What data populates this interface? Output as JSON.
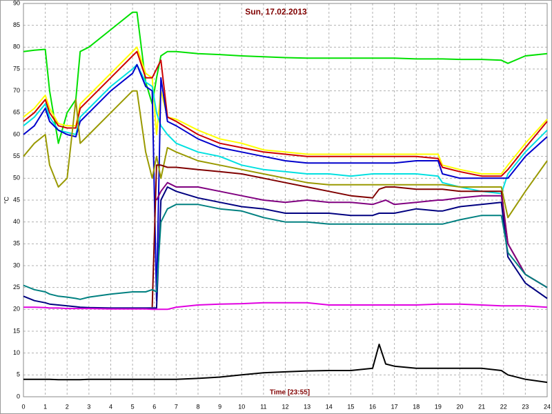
{
  "chart_data": {
    "type": "line",
    "title": "Sun, 17.02.2013",
    "xlabel": "Time [23:55]",
    "ylabel": "°C",
    "x": [
      0,
      0.5,
      1,
      1.2,
      1.6,
      2,
      2.4,
      2.6,
      3,
      4,
      5,
      5.2,
      5.6,
      5.9,
      6.1,
      6.3,
      6.6,
      7,
      8,
      9,
      10,
      11,
      12,
      13,
      14,
      15,
      16,
      16.3,
      16.6,
      17,
      18,
      19,
      19.2,
      20,
      21,
      21.9,
      22.2,
      23,
      24
    ],
    "xlim": [
      0,
      24
    ],
    "xticks": [
      0,
      1,
      2,
      3,
      4,
      5,
      6,
      7,
      8,
      9,
      10,
      11,
      12,
      13,
      14,
      15,
      16,
      17,
      18,
      19,
      20,
      21,
      22,
      23,
      24
    ],
    "ylim": [
      0,
      90
    ],
    "yticks": [
      0,
      5,
      10,
      15,
      20,
      25,
      30,
      35,
      40,
      45,
      50,
      55,
      60,
      65,
      70,
      75,
      80,
      85,
      90
    ],
    "grid": true,
    "series": [
      {
        "color": "#00e000",
        "values": [
          79,
          79.3,
          79.5,
          70,
          58,
          65,
          68,
          79,
          80,
          84,
          88,
          88,
          72,
          67,
          73,
          78,
          79,
          79,
          78.5,
          78.3,
          78,
          77.8,
          77.6,
          77.5,
          77.5,
          77.5,
          77.5,
          77.5,
          77.5,
          77.5,
          77.3,
          77.3,
          77.3,
          77.2,
          77.2,
          77,
          76.3,
          78,
          78.5
        ]
      },
      {
        "color": "#ffff00",
        "values": [
          64,
          66,
          69,
          66,
          62.5,
          62,
          62,
          67,
          69,
          74,
          79,
          80,
          74,
          73,
          60,
          70,
          64,
          63.5,
          61,
          59,
          58,
          56.5,
          56,
          55.5,
          55.5,
          55.5,
          55.5,
          55.5,
          55.5,
          55.5,
          55.5,
          55.5,
          53,
          52,
          51,
          51,
          53,
          58,
          63.5
        ]
      },
      {
        "color": "#cc0000",
        "values": [
          63,
          65,
          68,
          65,
          62,
          61.5,
          61.5,
          66,
          68,
          73,
          78,
          79,
          73,
          73,
          75,
          77,
          64,
          63,
          60,
          58,
          57,
          56,
          55.5,
          55,
          55,
          55,
          55,
          55,
          55,
          55,
          55,
          54.5,
          52.5,
          51.5,
          50.5,
          50.5,
          52,
          57,
          63
        ]
      },
      {
        "color": "#00e0e0",
        "values": [
          62,
          64,
          67,
          64,
          61,
          60.5,
          60,
          64,
          66,
          71,
          75,
          76,
          72,
          71,
          65,
          62,
          60,
          58,
          56,
          55,
          53,
          52,
          51.5,
          51,
          51,
          50.5,
          51,
          51,
          51,
          51,
          51,
          50.5,
          49,
          48,
          47,
          46.5,
          51,
          56,
          61
        ]
      },
      {
        "color": "#0000cc",
        "values": [
          60,
          62,
          66,
          63,
          61,
          60,
          59.5,
          63,
          65,
          70,
          74,
          76,
          71,
          70,
          22,
          73,
          63,
          62,
          59,
          57,
          56,
          55,
          54,
          53.5,
          53.5,
          53.5,
          53.5,
          53.5,
          53.5,
          53.5,
          54,
          54,
          51,
          50,
          50,
          50,
          50,
          55,
          59.5
        ]
      },
      {
        "color": "#999900",
        "values": [
          55,
          58,
          60,
          53,
          48,
          50,
          68,
          58,
          60,
          65,
          70,
          70,
          56,
          50,
          55,
          50,
          57,
          56,
          54,
          53,
          52,
          51,
          50,
          49,
          48.5,
          48.5,
          48.5,
          48.5,
          48.5,
          48.5,
          48.5,
          48.5,
          48.5,
          48,
          48,
          48,
          41,
          47,
          54
        ]
      },
      {
        "color": "#800000",
        "values": [
          null,
          null,
          null,
          null,
          null,
          null,
          null,
          null,
          null,
          null,
          null,
          null,
          null,
          20.5,
          53,
          53,
          52.5,
          52.5,
          52,
          51.5,
          51,
          50,
          49,
          48,
          47,
          46,
          45.5,
          47.5,
          48,
          48,
          47.5,
          47.5,
          47.5,
          47,
          47,
          47,
          35,
          28,
          25
        ]
      },
      {
        "color": "#800080",
        "values": [
          null,
          null,
          null,
          null,
          null,
          null,
          null,
          null,
          null,
          null,
          null,
          null,
          null,
          null,
          45,
          47,
          49,
          48,
          48,
          47,
          46,
          45,
          44.5,
          45,
          44.5,
          44.5,
          44,
          44.5,
          45,
          44,
          44.5,
          45,
          45,
          45.5,
          46,
          46,
          35,
          28,
          25
        ]
      },
      {
        "color": "#000080",
        "values": [
          23,
          22,
          21.5,
          21.2,
          21,
          20.8,
          20.6,
          20.5,
          20.4,
          20.3,
          20.3,
          20.3,
          20.3,
          20.3,
          20.3,
          45,
          48,
          47,
          45.5,
          44.5,
          43.5,
          43,
          42,
          42,
          42,
          41.5,
          41.5,
          42,
          42,
          42,
          43,
          42.5,
          42.5,
          43.5,
          44,
          44.5,
          32,
          26,
          22.5
        ]
      },
      {
        "color": "#008080",
        "values": [
          25.5,
          24.5,
          24,
          23.5,
          23,
          22.8,
          22.5,
          22.3,
          22.8,
          23.5,
          24,
          24,
          24,
          24.5,
          24,
          40,
          43,
          44,
          44,
          43,
          42.5,
          41,
          40,
          40,
          39.5,
          39.5,
          39.5,
          39.5,
          39.5,
          39.5,
          39.5,
          39.5,
          39.5,
          40.5,
          41.5,
          41.5,
          33,
          28,
          25
        ]
      },
      {
        "color": "#e000e0",
        "values": [
          20.5,
          20.5,
          20.4,
          20.3,
          20.3,
          20.2,
          20.2,
          20.2,
          20.2,
          20.1,
          20.1,
          20.1,
          20.1,
          20,
          20,
          20,
          20,
          20.5,
          21,
          21.2,
          21.3,
          21.5,
          21.5,
          21.5,
          21,
          21,
          21,
          21,
          21,
          21,
          21,
          21.2,
          21.2,
          21.2,
          21,
          20.8,
          20.8,
          20.8,
          20.5
        ]
      },
      {
        "color": "#000000",
        "values": [
          4,
          4,
          4,
          4,
          3.9,
          3.9,
          3.9,
          3.9,
          4,
          4,
          4,
          4,
          4,
          4,
          4,
          4,
          4,
          4,
          4.2,
          4.5,
          5,
          5.5,
          5.7,
          5.9,
          6,
          6,
          6.5,
          12,
          7.5,
          7,
          6.5,
          6.5,
          6.5,
          6.5,
          6.5,
          6,
          5,
          4,
          3.3
        ]
      }
    ]
  }
}
